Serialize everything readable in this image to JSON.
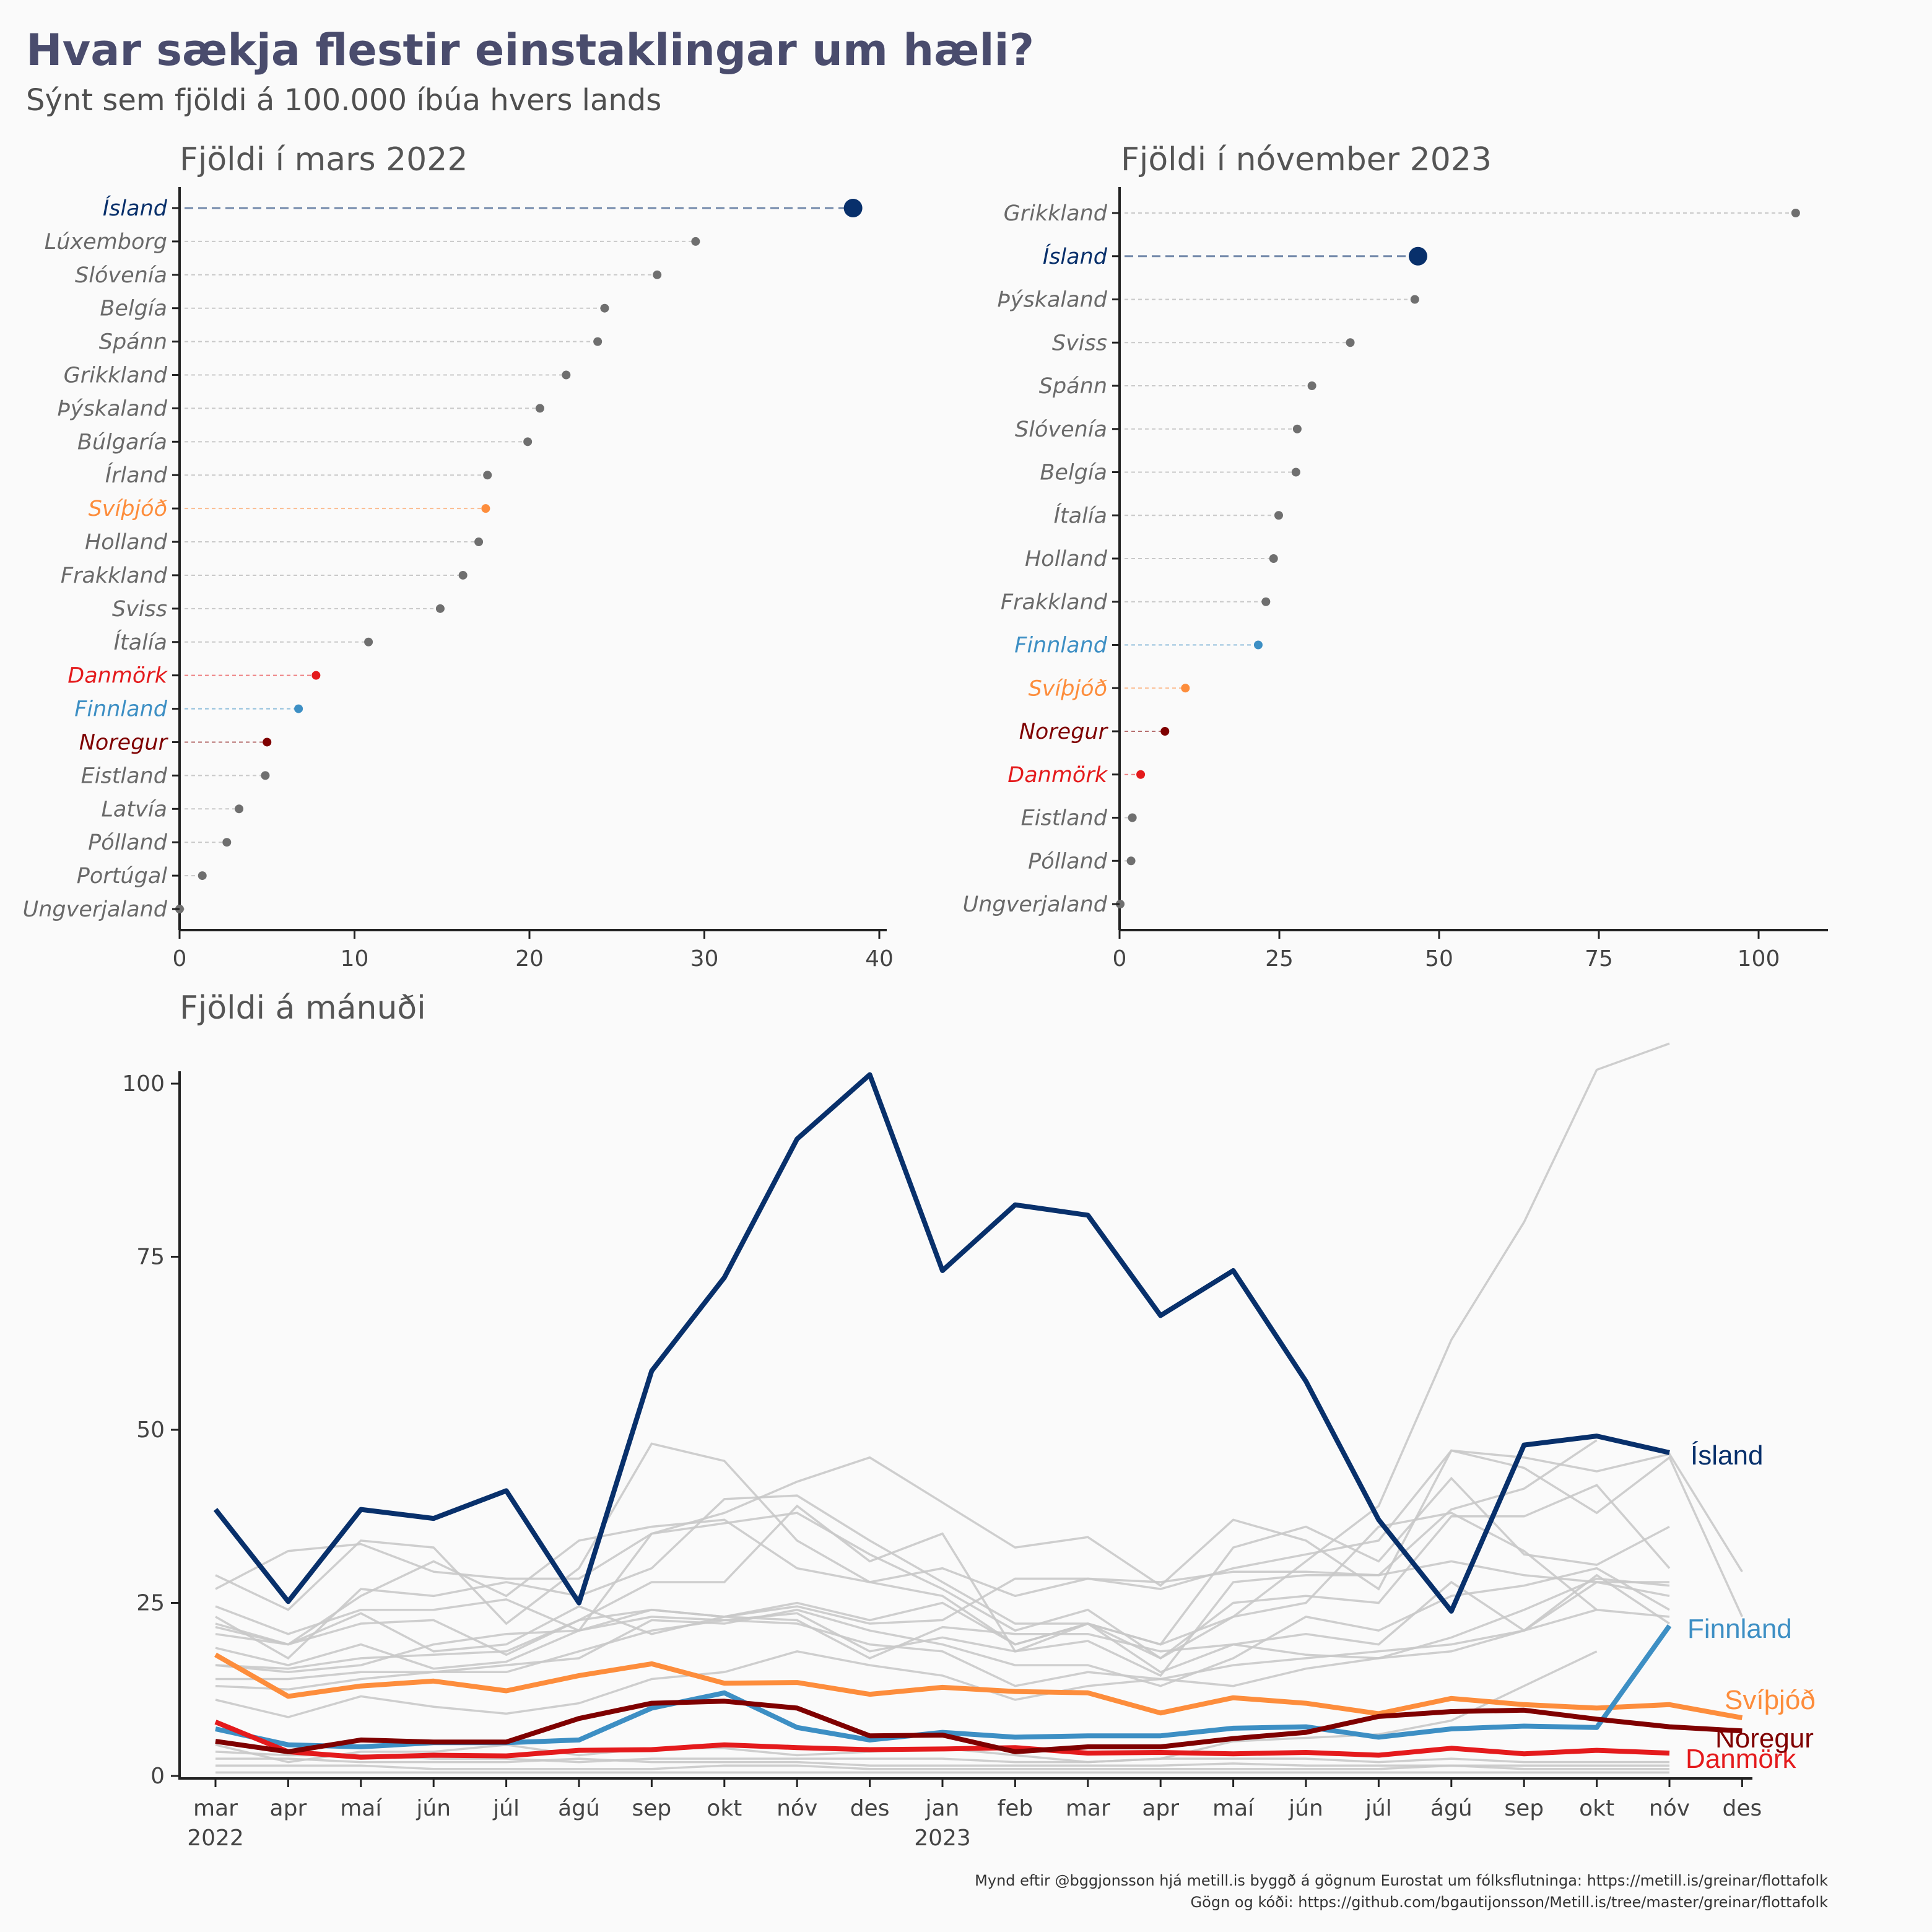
{
  "title": "Hvar sækja flestir einstaklingar um hæli?",
  "subtitle": "Sýnt sem fjöldi á 100.000 íbúa hvers lands",
  "caption": {
    "line1": "Mynd eftir @bggjonsson hjá metill.is byggð á gögnum Eurostat um fólksflutninga: https://metill.is/greinar/flottafolk",
    "line2": "Gögn og kóði: https://github.com/bgautijonsson/Metill.is/tree/master/greinar/flottafolk"
  },
  "colors": {
    "ísland": "#08306b",
    "svíþjóð": "#fd8d3c",
    "danmörk": "#e41a1c",
    "finnland": "#3d8fc4",
    "noregur": "#7f0000",
    "other": "#6f6f6f",
    "other_line": "#c9c9c9"
  },
  "chart_data": [
    {
      "type": "dot",
      "title": "Fjöldi í mars 2022",
      "xlim": [
        0,
        40
      ],
      "xticks": [
        "0",
        "10",
        "20",
        "30",
        "40"
      ],
      "categories": [
        "Ísland",
        "Lúxemborg",
        "Slóvenía",
        "Belgía",
        "Spánn",
        "Grikkland",
        "Þýskaland",
        "Búlgaría",
        "Írland",
        "Svíþjóð",
        "Holland",
        "Frakkland",
        "Sviss",
        "Ítalía",
        "Danmörk",
        "Finnland",
        "Noregur",
        "Eistland",
        "Latvía",
        "Pólland",
        "Portúgal",
        "Ungverjaland"
      ],
      "values": [
        38.5,
        29.5,
        27.3,
        24.3,
        23.9,
        22.1,
        20.6,
        19.9,
        17.6,
        17.5,
        17.1,
        16.2,
        14.9,
        10.8,
        7.8,
        6.8,
        5.0,
        4.9,
        3.4,
        2.7,
        1.3,
        0.0
      ]
    },
    {
      "type": "dot",
      "title": "Fjöldi í nóvember 2023",
      "xlim": [
        0,
        100
      ],
      "xticks": [
        "0",
        "25",
        "50",
        "75",
        "100"
      ],
      "categories": [
        "Grikkland",
        "Ísland",
        "Þýskaland",
        "Sviss",
        "Spánn",
        "Slóvenía",
        "Belgía",
        "Ítalía",
        "Holland",
        "Frakkland",
        "Finnland",
        "Svíþjóð",
        "Noregur",
        "Danmörk",
        "Eistland",
        "Pólland",
        "Ungverjaland"
      ],
      "values": [
        105.8,
        46.7,
        46.2,
        36.1,
        30.1,
        27.8,
        27.6,
        24.9,
        24.1,
        22.9,
        21.7,
        10.3,
        7.1,
        3.3,
        2.0,
        1.8,
        0.1
      ]
    },
    {
      "type": "line",
      "title": "Fjöldi á mánuði",
      "ylim": [
        0,
        100
      ],
      "yticks": [
        "0",
        "25",
        "50",
        "75",
        "100"
      ],
      "x": [
        "mar",
        "apr",
        "maí",
        "jún",
        "júl",
        "ágú",
        "sep",
        "okt",
        "nóv",
        "des",
        "jan",
        "feb",
        "mar",
        "apr",
        "maí",
        "jún",
        "júl",
        "ágú",
        "sep",
        "okt",
        "nóv",
        "des"
      ],
      "x_year_labels": [
        {
          "index": 0,
          "label": "2022"
        },
        {
          "index": 10,
          "label": "2023"
        }
      ],
      "series": [
        {
          "name": "Ísland",
          "values": [
            38.5,
            25.2,
            38.5,
            37.2,
            41.2,
            25.0,
            58.5,
            72.0,
            92.0,
            101.3,
            73.0,
            82.5,
            81.0,
            66.5,
            73.0,
            57.0,
            37.0,
            23.8,
            47.8,
            49.1,
            46.7,
            null
          ]
        },
        {
          "name": "Finnland",
          "values": [
            6.8,
            4.5,
            4.2,
            4.8,
            4.8,
            5.2,
            9.8,
            12.0,
            7.0,
            5.2,
            6.3,
            5.6,
            5.8,
            5.8,
            6.9,
            7.1,
            5.6,
            6.8,
            7.2,
            7.0,
            21.7,
            null
          ]
        },
        {
          "name": "Svíþjóð",
          "values": [
            17.5,
            11.5,
            13.0,
            13.7,
            12.3,
            14.5,
            16.2,
            13.4,
            13.5,
            11.8,
            12.8,
            12.2,
            12.0,
            9.1,
            11.3,
            10.5,
            9.0,
            11.2,
            10.3,
            9.8,
            10.3,
            8.4
          ]
        },
        {
          "name": "Noregur",
          "values": [
            5.0,
            3.5,
            5.2,
            4.9,
            4.9,
            8.3,
            10.5,
            10.8,
            9.8,
            5.8,
            5.9,
            3.5,
            4.2,
            4.2,
            5.4,
            6.3,
            8.6,
            9.3,
            9.5,
            8.2,
            7.1,
            6.5
          ]
        },
        {
          "name": "Danmörk",
          "values": [
            7.8,
            3.5,
            2.7,
            3.0,
            2.9,
            3.7,
            3.8,
            4.5,
            4.1,
            3.8,
            3.9,
            4.1,
            3.3,
            3.4,
            3.2,
            3.4,
            3.0,
            4.0,
            3.2,
            3.7,
            3.3,
            null
          ]
        },
        {
          "values": [
            29.0,
            24.0,
            34.0,
            33.0,
            22.0,
            30.0,
            48.0,
            45.5,
            34.0,
            28.0,
            26.0,
            19.0,
            22.0,
            19.0,
            23.0,
            31.0,
            39.0,
            63.0,
            80.0,
            102.0,
            105.8,
            null
          ]
        },
        {
          "values": [
            27.0,
            32.5,
            33.5,
            29.5,
            28.5,
            28.5,
            35.0,
            38.0,
            42.5,
            46.0,
            39.5,
            33.0,
            34.5,
            27.5,
            37.0,
            34.0,
            27.0,
            47.0,
            46.0,
            44.0,
            46.5,
            29.5
          ]
        },
        {
          "values": [
            22.0,
            19.0,
            26.0,
            31.0,
            26.0,
            34.0,
            36.0,
            37.0,
            30.0,
            28.0,
            30.0,
            26.0,
            28.5,
            27.0,
            30.0,
            32.0,
            34.0,
            47.0,
            44.5,
            38.0,
            46.0,
            23.0
          ]
        },
        {
          "values": [
            23.0,
            17.0,
            27.0,
            26.0,
            28.0,
            26.0,
            30.0,
            40.0,
            40.5,
            34.0,
            28.0,
            22.0,
            22.0,
            19.0,
            33.0,
            36.0,
            31.0,
            43.0,
            32.0,
            30.5,
            36.0,
            null
          ]
        },
        {
          "values": [
            24.5,
            20.5,
            24.0,
            24.0,
            25.5,
            21.0,
            35.0,
            36.5,
            38.0,
            32.0,
            27.0,
            21.0,
            24.0,
            17.0,
            25.0,
            26.0,
            25.0,
            37.5,
            37.5,
            42.0,
            30.0,
            null
          ]
        },
        {
          "values": [
            20.5,
            19.0,
            22.0,
            22.5,
            17.5,
            22.5,
            28.0,
            28.0,
            39.0,
            31.0,
            35.0,
            18.0,
            19.5,
            14.5,
            28.0,
            29.0,
            29.0,
            31.0,
            29.0,
            28.0,
            28.0,
            null
          ]
        },
        {
          "values": [
            21.5,
            19.0,
            23.5,
            18.0,
            19.0,
            24.5,
            20.5,
            23.0,
            24.5,
            22.0,
            22.5,
            28.5,
            28.5,
            28.0,
            29.5,
            29.5,
            29.0,
            38.5,
            41.5,
            48.5,
            null,
            null
          ]
        },
        {
          "values": [
            18.5,
            16.0,
            19.0,
            15.5,
            16.5,
            21.0,
            23.0,
            22.5,
            23.5,
            18.0,
            20.0,
            18.0,
            22.0,
            17.0,
            23.0,
            25.0,
            36.0,
            38.0,
            32.5,
            24.0,
            null,
            null
          ]
        },
        {
          "values": [
            16.0,
            15.0,
            16.0,
            19.0,
            20.5,
            21.0,
            24.0,
            23.0,
            25.0,
            22.5,
            25.0,
            19.0,
            22.0,
            15.0,
            19.0,
            20.5,
            19.0,
            28.0,
            21.0,
            28.0,
            26.0,
            null
          ]
        },
        {
          "values": [
            16.0,
            15.5,
            17.0,
            17.5,
            18.0,
            22.5,
            24.0,
            23.0,
            22.5,
            17.0,
            21.5,
            20.5,
            20.5,
            18.0,
            19.0,
            17.5,
            17.0,
            20.0,
            24.0,
            28.5,
            27.5,
            null
          ]
        },
        {
          "values": [
            13.0,
            12.5,
            14.0,
            15.0,
            16.0,
            17.0,
            22.5,
            22.0,
            24.0,
            21.0,
            19.0,
            16.0,
            16.0,
            13.0,
            17.0,
            23.0,
            21.0,
            26.0,
            27.5,
            30.0,
            24.0,
            null
          ]
        },
        {
          "values": [
            14.0,
            14.0,
            15.0,
            15.0,
            15.0,
            18.0,
            21.0,
            22.5,
            22.0,
            19.0,
            18.0,
            13.0,
            15.0,
            14.0,
            16.0,
            17.0,
            18.0,
            19.0,
            21.0,
            29.0,
            22.0,
            null
          ]
        },
        {
          "values": [
            11.0,
            8.5,
            11.5,
            10.0,
            9.0,
            10.5,
            14.0,
            15.0,
            18.0,
            16.0,
            14.5,
            11.0,
            13.0,
            14.0,
            13.0,
            15.5,
            17.0,
            18.0,
            21.0,
            24.0,
            23.0,
            null
          ]
        },
        {
          "values": [
            4.5,
            2.0,
            3.5,
            3.5,
            4.5,
            3.0,
            4.0,
            4.0,
            3.0,
            3.5,
            4.0,
            3.0,
            2.0,
            2.5,
            5.0,
            5.5,
            6.0,
            8.0,
            13.0,
            18.0,
            null,
            null
          ]
        },
        {
          "values": [
            3.5,
            3.0,
            3.0,
            2.5,
            2.5,
            2.0,
            2.5,
            2.5,
            2.5,
            2.5,
            2.5,
            2.0,
            2.0,
            2.5,
            2.5,
            2.5,
            2.0,
            2.5,
            2.0,
            2.0,
            2.0,
            null
          ]
        },
        {
          "values": [
            2.5,
            2.5,
            2.0,
            2.0,
            2.0,
            2.5,
            2.0,
            2.0,
            2.0,
            1.5,
            1.5,
            1.5,
            1.5,
            1.5,
            1.8,
            1.5,
            1.5,
            1.5,
            1.5,
            1.5,
            1.5,
            null
          ]
        },
        {
          "values": [
            1.5,
            1.5,
            1.5,
            1.0,
            1.0,
            1.0,
            1.0,
            1.5,
            1.5,
            1.0,
            1.0,
            1.0,
            1.0,
            1.0,
            1.0,
            1.0,
            1.0,
            1.5,
            1.0,
            1.0,
            1.0,
            null
          ]
        },
        {
          "values": [
            0.5,
            0.5,
            0.5,
            0.5,
            0.5,
            0.5,
            0.5,
            0.5,
            0.5,
            0.5,
            0.5,
            0.5,
            0.5,
            0.5,
            0.5,
            0.5,
            0.5,
            0.5,
            0.5,
            0.5,
            0.5,
            null
          ]
        }
      ]
    }
  ]
}
